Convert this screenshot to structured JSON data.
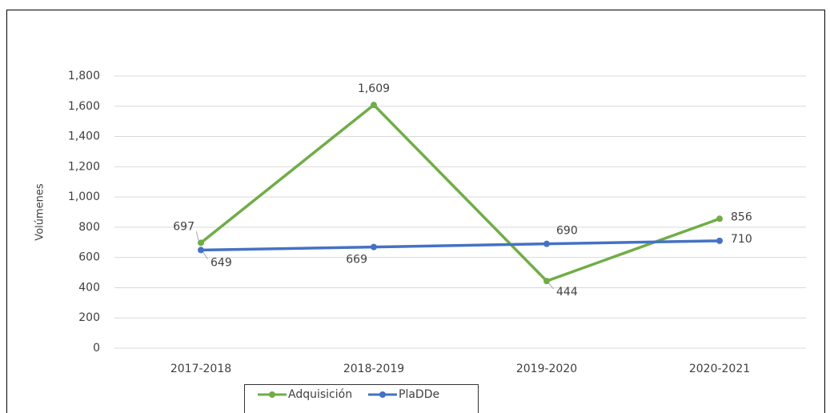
{
  "chart_data": {
    "type": "line",
    "y_label": "Volúmenes",
    "categories": [
      "2017-2018",
      "2018-2019",
      "2019-2020",
      "2020-2021"
    ],
    "series": [
      {
        "name": "Adquisición",
        "color": "#70ad47",
        "values": [
          697,
          1609,
          444,
          856
        ],
        "value_labels": [
          "697",
          "1,609",
          "444",
          "856"
        ]
      },
      {
        "name": "PlaDDe",
        "color": "#4472c4",
        "values": [
          649,
          669,
          690,
          710
        ]
      }
    ],
    "ylim": [
      0,
      1800
    ],
    "yticks": [
      0,
      200,
      400,
      600,
      800,
      {
        "value": 1000,
        "label": "1,000"
      },
      {
        "value": 1200,
        "label": "1,200"
      },
      {
        "value": 1400,
        "label": "1,400"
      },
      {
        "value": 1600,
        "label": "1,600"
      },
      {
        "value": 1800,
        "label": "1,800"
      }
    ],
    "grid": true,
    "legend": "bottom"
  }
}
